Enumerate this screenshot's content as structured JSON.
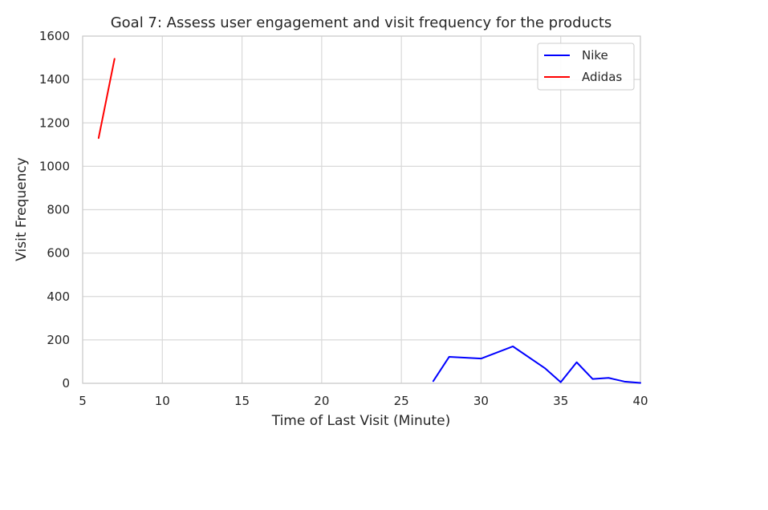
{
  "chart_data": {
    "type": "line",
    "title": "Goal 7: Assess user engagement and visit frequency for the products",
    "xlabel": "Time of Last Visit (Minute)",
    "ylabel": "Visit Frequency",
    "xlim": [
      5,
      40
    ],
    "ylim": [
      0,
      1600
    ],
    "xticks": [
      5,
      10,
      15,
      20,
      25,
      30,
      35,
      40
    ],
    "yticks": [
      0,
      200,
      400,
      600,
      800,
      1000,
      1200,
      1400,
      1600
    ],
    "grid": true,
    "legend_position": "top-right",
    "series": [
      {
        "name": "Nike",
        "color": "#0000ff",
        "x": [
          27,
          28,
          30,
          32,
          34,
          35,
          36,
          37,
          38,
          39,
          40
        ],
        "y": [
          10,
          122,
          114,
          170,
          70,
          5,
          97,
          20,
          25,
          8,
          2
        ]
      },
      {
        "name": "Adidas",
        "color": "#ff0000",
        "x": [
          6,
          7
        ],
        "y": [
          1130,
          1495
        ]
      }
    ]
  }
}
